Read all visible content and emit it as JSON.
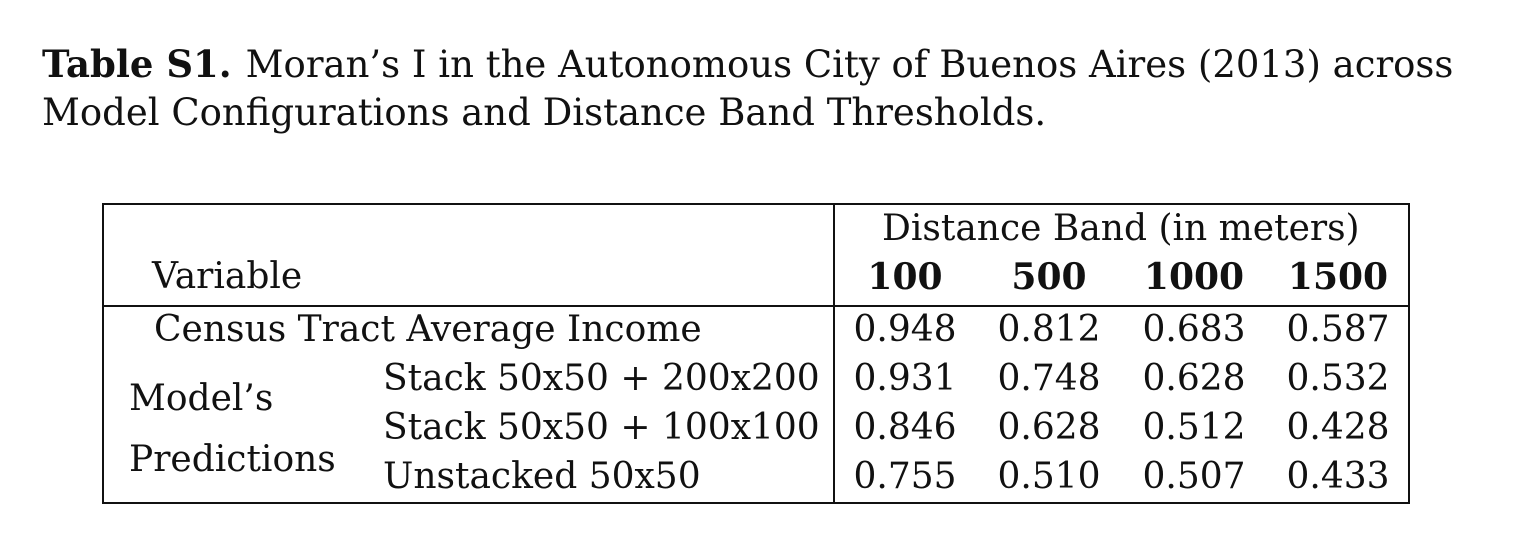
{
  "caption": {
    "label": "Table S1.",
    "text": "Moran’s I in the Autonomous City of Buenos Aires (2013) across Model Configurations and Distance Band Thresholds."
  },
  "table": {
    "band_header": "Distance Band (in meters)",
    "variable_header": "Variable",
    "bands": [
      "100",
      "500",
      "1000",
      "1500"
    ],
    "census_row": {
      "label": "Census Tract Average Income",
      "values": [
        "0.948",
        "0.812",
        "0.683",
        "0.587"
      ]
    },
    "group_label_line1": "Model’s",
    "group_label_line2": "Predictions",
    "model_rows": [
      {
        "label": "Stack 50x50 + 200x200",
        "values": [
          "0.931",
          "0.748",
          "0.628",
          "0.532"
        ]
      },
      {
        "label": "Stack 50x50 + 100x100",
        "values": [
          "0.846",
          "0.628",
          "0.512",
          "0.428"
        ]
      },
      {
        "label": "Unstacked 50x50",
        "values": [
          "0.755",
          "0.510",
          "0.507",
          "0.433"
        ]
      }
    ]
  }
}
